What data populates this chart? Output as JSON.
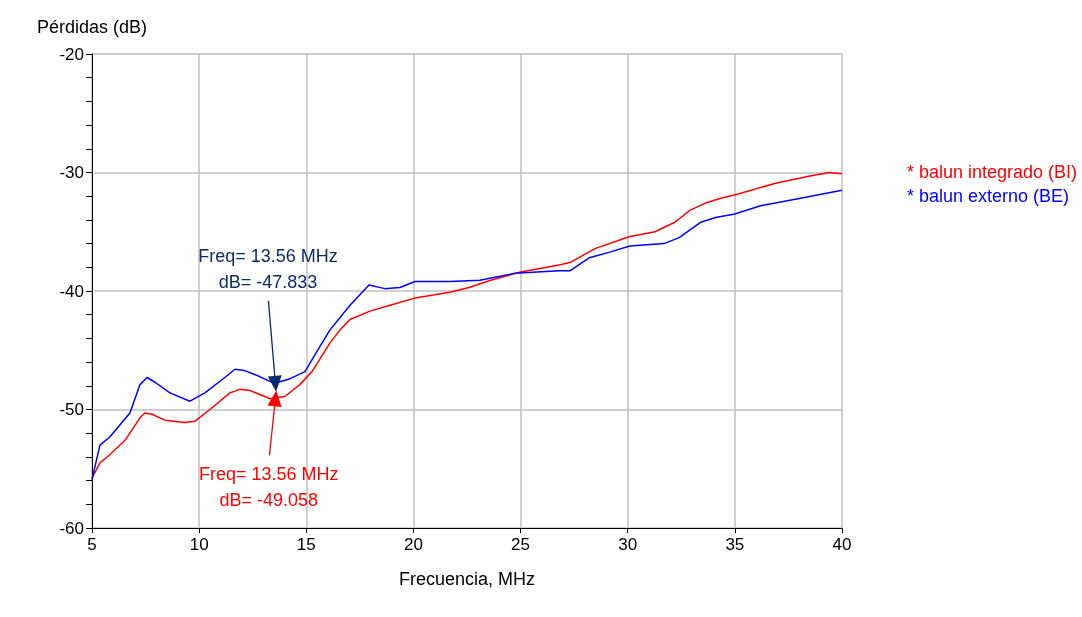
{
  "chart_data": {
    "type": "line",
    "xlabel": "Frecuencia, MHz",
    "ylabel": "Pérdidas (dB)",
    "xlim": [
      5,
      40
    ],
    "xticks": [
      5,
      10,
      15,
      20,
      25,
      30,
      35,
      40
    ],
    "ylim": [
      -60,
      -20
    ],
    "yticks": [
      -60,
      -50,
      -40,
      -30,
      -20
    ],
    "grid": true,
    "legend": "right",
    "marker": "none",
    "line_style": "solid",
    "series": [
      {
        "name": "* balun integrado (BI)",
        "color": "#ff0000",
        "x": [
          5,
          5.37,
          5.84,
          6.54,
          7.24,
          7.47,
          7.8,
          8.4,
          9.34,
          9.8,
          10.5,
          11.44,
          11.9,
          12.37,
          13.07,
          13.3,
          14.0,
          14.7,
          15.27,
          16.1,
          16.57,
          17.04,
          17.97,
          18.9,
          20.07,
          21.7,
          22.6,
          23.6,
          25.0,
          26.8,
          27.3,
          28.5,
          30.1,
          31.27,
          32.2,
          32.9,
          33.6,
          34.3,
          35.2,
          36.9,
          38.5,
          39.4,
          40
        ],
        "values": [
          -55.8,
          -54.5,
          -53.8,
          -52.6,
          -50.7,
          -50.3,
          -50.4,
          -50.9,
          -51.1,
          -51,
          -50,
          -48.6,
          -48.3,
          -48.4,
          -48.9,
          -49.1,
          -48.9,
          -47.9,
          -46.8,
          -44.4,
          -43.3,
          -42.4,
          -41.7,
          -41.2,
          -40.6,
          -40.1,
          -39.7,
          -39.1,
          -38.4,
          -37.8,
          -37.6,
          -36.4,
          -35.4,
          -35,
          -34.2,
          -33.2,
          -32.6,
          -32.2,
          -31.8,
          -30.9,
          -30.3,
          -30.0,
          -30.1
        ]
      },
      {
        "name": "* balun externo (BE)",
        "color": "#0000ff",
        "x": [
          5,
          5.37,
          5.84,
          6.3,
          6.77,
          7.24,
          7.57,
          7.94,
          8.64,
          9.57,
          10.27,
          11.2,
          11.67,
          12.1,
          12.8,
          13.5,
          14.24,
          14.94,
          15.4,
          16.1,
          17.04,
          17.93,
          18.67,
          19.37,
          20.07,
          21.7,
          23.1,
          24.74,
          26.8,
          27.3,
          28.2,
          29.2,
          30.1,
          31.7,
          32.4,
          33.4,
          34.1,
          35.0,
          36.2,
          38.0,
          40
        ],
        "values": [
          -55.9,
          -53,
          -52.3,
          -51.3,
          -50.3,
          -47.9,
          -47.3,
          -47.7,
          -48.6,
          -49.3,
          -48.6,
          -47.3,
          -46.6,
          -46.7,
          -47.2,
          -47.8,
          -47.4,
          -46.8,
          -45.4,
          -43.3,
          -41.2,
          -39.5,
          -39.8,
          -39.7,
          -39.2,
          -39.2,
          -39.1,
          -38.5,
          -38.3,
          -38.3,
          -37.2,
          -36.7,
          -36.2,
          -36,
          -35.5,
          -34.2,
          -33.8,
          -33.5,
          -32.8,
          -32.2,
          -31.5
        ]
      }
    ],
    "annotations": [
      {
        "text": "Freq= 13.56 MHz\ndB= -49.058",
        "x": 13.56,
        "y": -49.058
      },
      {
        "text": "Freq= 13.56 MHz\ndB= -47.833",
        "x": 13.56,
        "y": -47.833
      }
    ]
  }
}
